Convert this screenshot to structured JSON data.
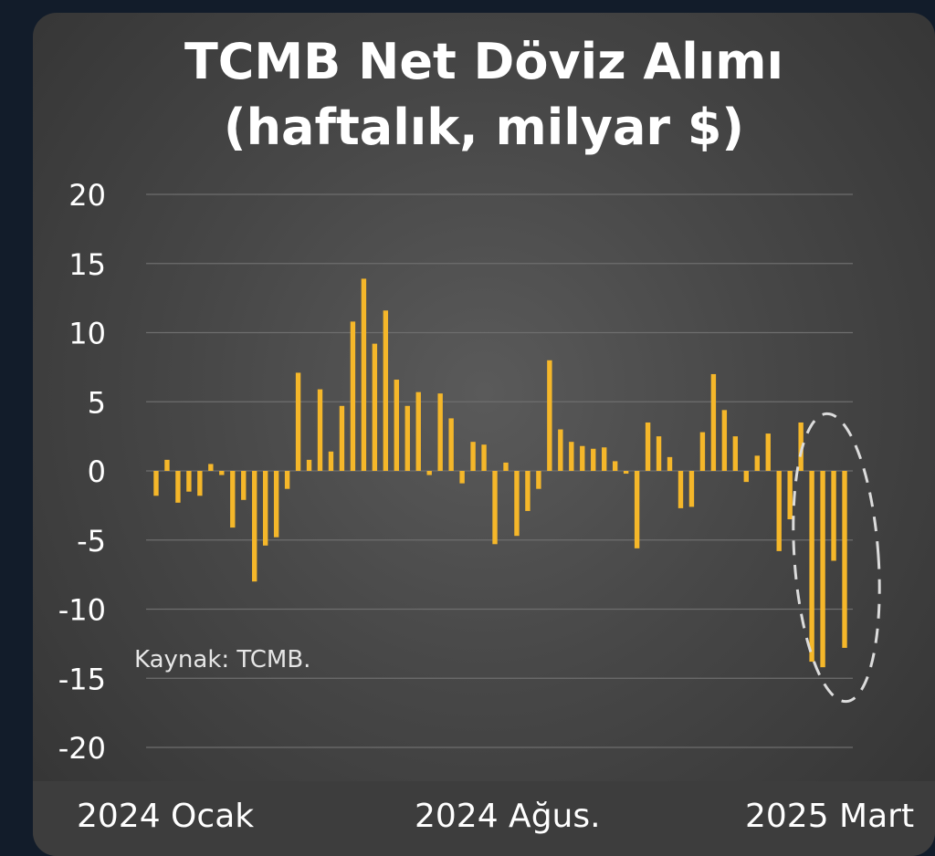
{
  "chart_data": {
    "type": "bar",
    "title": "TCMB Net Döviz Alımı",
    "subtitle": "(haftalık, milyar $)",
    "ylim": [
      -20,
      20
    ],
    "yticks": [
      20,
      15,
      10,
      5,
      0,
      -5,
      -10,
      -15,
      -20
    ],
    "grid": true,
    "x_labels": [
      "2024 Ocak",
      "2024 Ağus.",
      "2025 Mart"
    ],
    "source_note": "Kaynak: TCMB.",
    "bar_color": "#f5b72a",
    "highlight": "dashed ellipse around last four weeks",
    "values": [
      -1.8,
      0.8,
      -2.3,
      -1.5,
      -1.8,
      0.5,
      -0.3,
      -4.1,
      -2.1,
      -8.0,
      -5.4,
      -4.8,
      -1.3,
      7.1,
      0.8,
      5.9,
      1.4,
      4.7,
      10.8,
      13.9,
      9.2,
      11.6,
      6.6,
      4.7,
      5.7,
      -0.3,
      5.6,
      3.8,
      -0.9,
      2.1,
      1.9,
      -5.3,
      0.6,
      -4.7,
      -2.9,
      -1.3,
      8.0,
      3.0,
      2.1,
      1.8,
      1.6,
      1.7,
      0.7,
      -0.2,
      -5.6,
      3.5,
      2.5,
      1.0,
      -2.7,
      -2.6,
      2.8,
      7.0,
      4.4,
      2.5,
      -0.8,
      1.1,
      2.7,
      -5.8,
      -3.5,
      3.5,
      -13.8,
      -14.2,
      -6.5,
      -12.8
    ]
  },
  "colors": {
    "bar": "#f5b72a",
    "grid": "#6e6e6e",
    "text": "#ffffff",
    "note": "#e6e6e6",
    "highlight": "#dcdcdc"
  }
}
